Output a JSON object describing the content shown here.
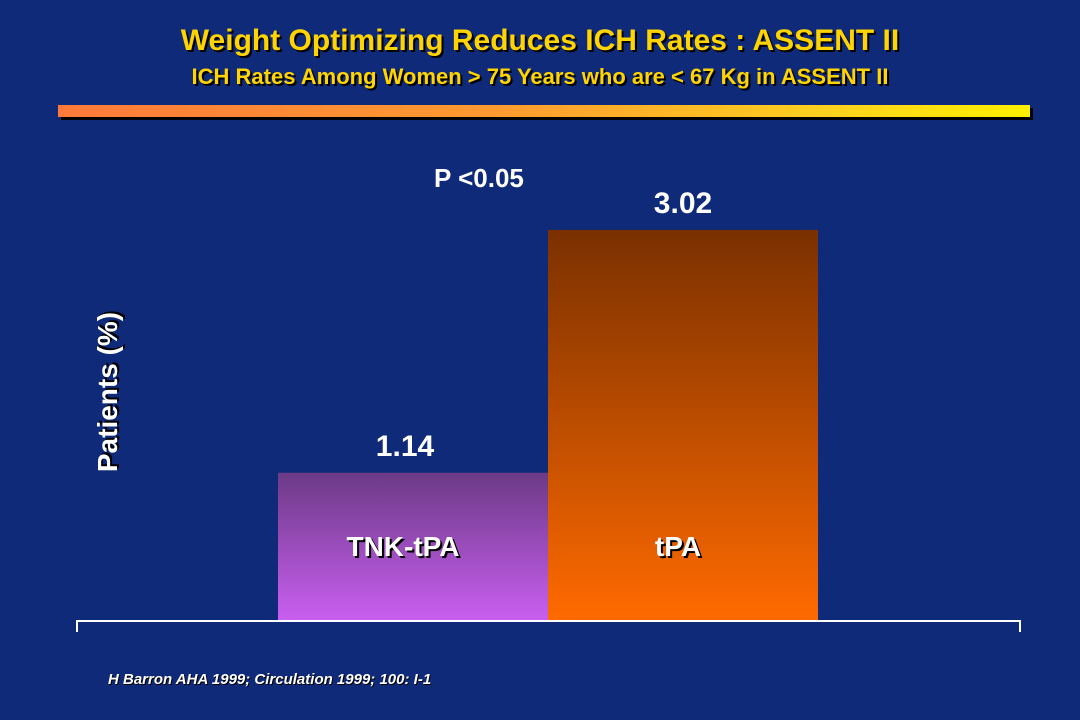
{
  "slide": {
    "title": "Weight Optimizing Reduces ICH Rates : ASSENT II",
    "subtitle": "ICH Rates Among Women > 75 Years who are < 67 Kg in ASSENT II",
    "citation": "H Barron AHA 1999; Circulation 1999; 100: I-1",
    "colors": {
      "background": "#0f2a78",
      "title_text": "#ffd400",
      "tnk_bar_top": "#6b3a86",
      "tnk_bar_bottom": "#c95ff0",
      "tpa_bar_top": "#7a3000",
      "tpa_bar_bottom": "#ff6a00"
    }
  },
  "chart_data": {
    "type": "bar",
    "title": "",
    "ylabel": "Patients (%)",
    "xlabel": "",
    "categories": [
      "TNK-tPA",
      "tPA"
    ],
    "values": [
      1.14,
      3.02
    ],
    "data_labels": [
      "1.14",
      "3.02"
    ],
    "annotation": "P <0.05",
    "ylim": [
      0,
      3.6
    ],
    "grid": false,
    "legend": "none"
  }
}
